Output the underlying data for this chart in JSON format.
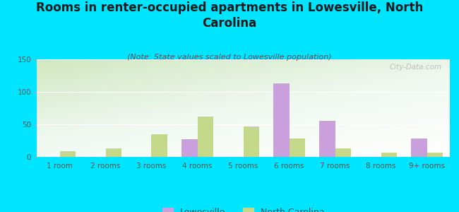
{
  "title": "Rooms in renter-occupied apartments in Lowesville, North\nCarolina",
  "subtitle": "(Note: State values scaled to Lowesville population)",
  "categories": [
    "1 room",
    "2 rooms",
    "3 rooms",
    "4 rooms",
    "5 rooms",
    "6 rooms",
    "7 rooms",
    "8 rooms",
    "9+ rooms"
  ],
  "lowesville": [
    0,
    0,
    0,
    27,
    0,
    113,
    55,
    0,
    28
  ],
  "nc": [
    9,
    13,
    35,
    62,
    47,
    28,
    13,
    7,
    6
  ],
  "lowesville_color": "#c9a0dc",
  "nc_color": "#c5d88a",
  "background_color": "#00e5ff",
  "ylim": [
    0,
    150
  ],
  "yticks": [
    0,
    50,
    100,
    150
  ],
  "bar_width": 0.35,
  "title_fontsize": 12,
  "subtitle_fontsize": 8,
  "tick_fontsize": 7.5,
  "legend_fontsize": 9,
  "watermark": "City-Data.com"
}
